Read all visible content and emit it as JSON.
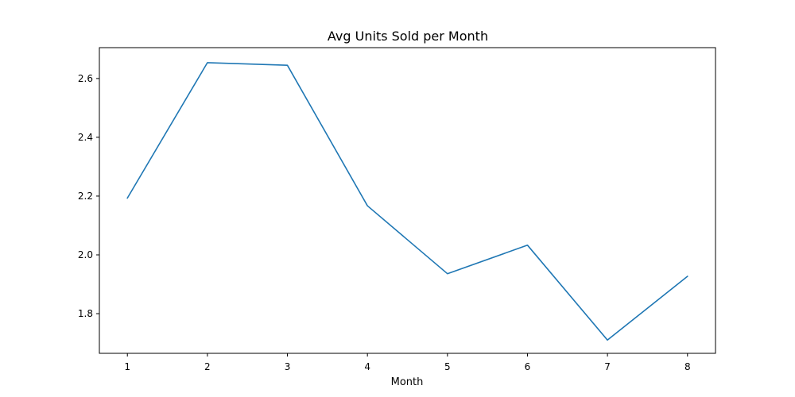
{
  "chart_data": {
    "type": "line",
    "title": "Avg Units Sold per Month",
    "xlabel": "Month",
    "ylabel": "",
    "x": [
      1,
      2,
      3,
      4,
      5,
      6,
      7,
      8
    ],
    "x_ticks": [
      "1",
      "2",
      "3",
      "4",
      "5",
      "6",
      "7",
      "8"
    ],
    "y_ticks": [
      "1.8",
      "2.0",
      "2.2",
      "2.4",
      "2.6"
    ],
    "xlim": [
      0.65,
      8.35
    ],
    "ylim": [
      1.665,
      2.705
    ],
    "grid": false,
    "series": [
      {
        "color": "#1f77b4",
        "values": [
          2.193,
          2.654,
          2.645,
          2.167,
          1.936,
          2.033,
          1.71,
          1.927
        ]
      }
    ]
  }
}
